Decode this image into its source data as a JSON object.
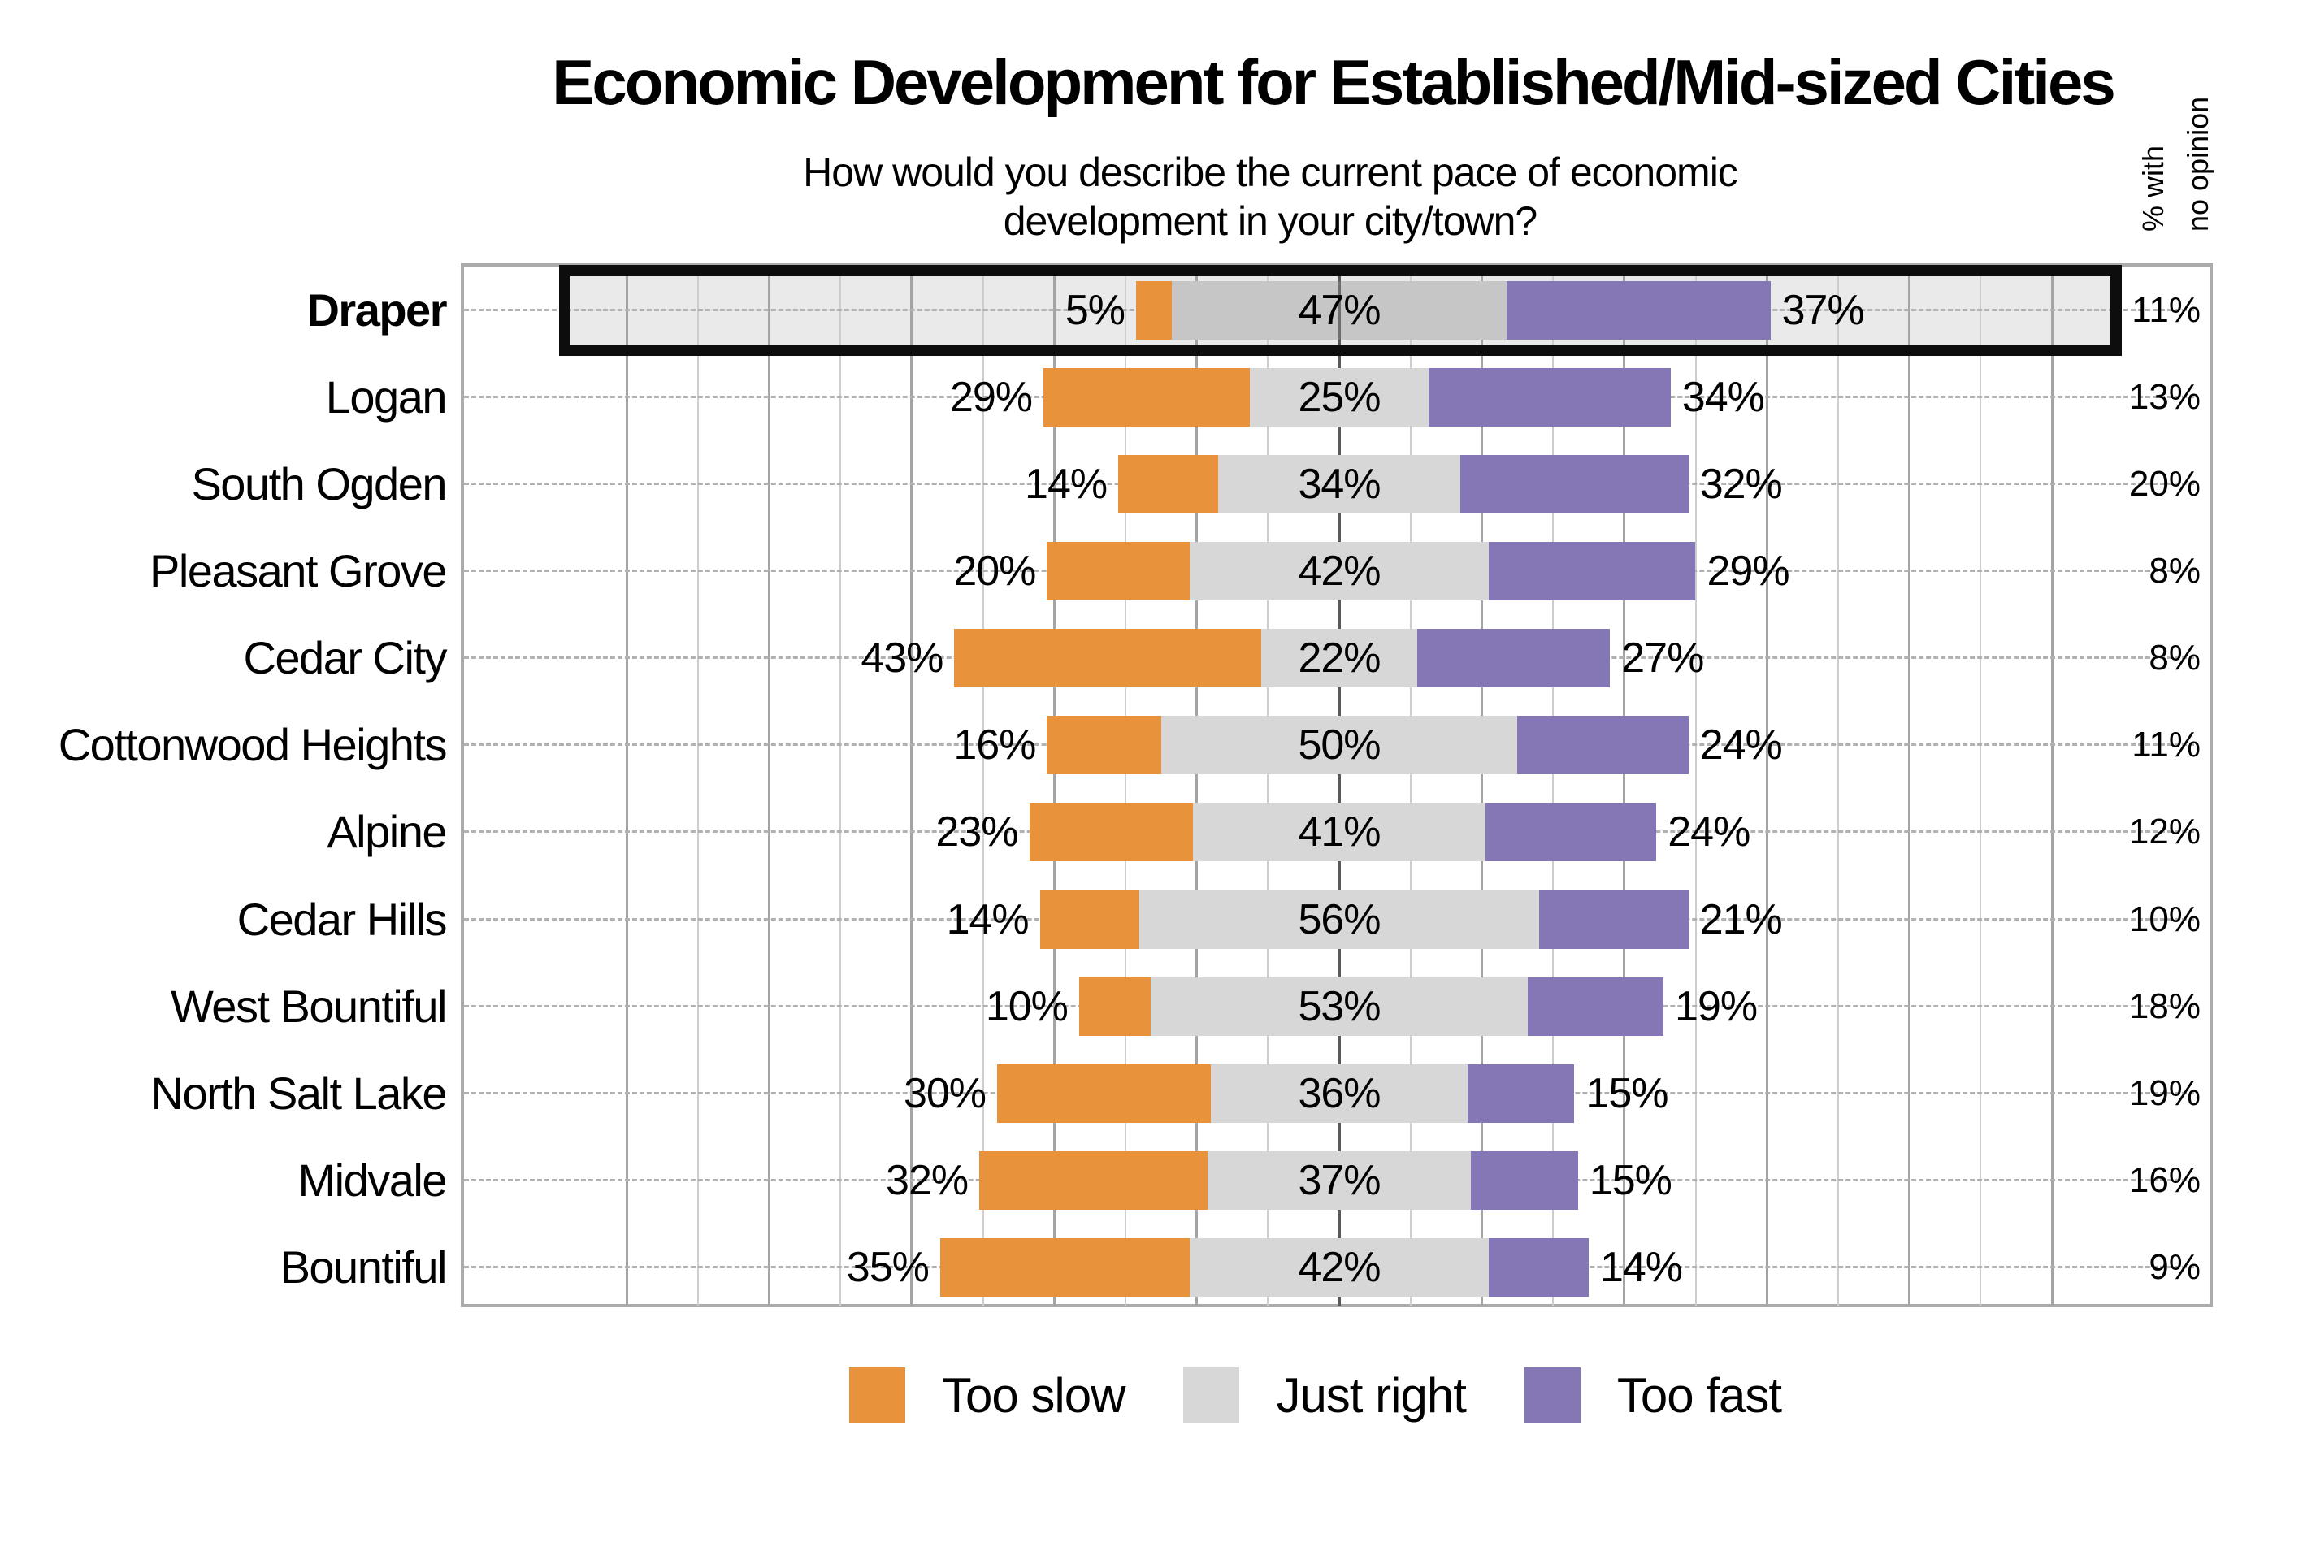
{
  "title": "Economic Development for Established/Mid-sized Cities",
  "subtitle_line1": "How would you describe the current pace of economic",
  "subtitle_line2": "development in your city/town?",
  "right_axis_label_line1": "% with",
  "right_axis_label_line2": "no opinion",
  "legend": [
    {
      "label": "Too slow",
      "color": "#E8923C"
    },
    {
      "label": "Just right",
      "color": "#D7D7D7"
    },
    {
      "label": "Too fast",
      "color": "#8577B5"
    }
  ],
  "colors": {
    "too_slow": "#E8923C",
    "just_right": "#D7D7D7",
    "too_fast": "#8577B5",
    "highlight_fill": "#EAEAEA",
    "highlight_just_right": "#C6C6C6",
    "highlight_border": "#0D0D0D",
    "frame_border": "#ABABAB",
    "grid_minor": "#CDCDCD",
    "grid_major": "#A4A4A4",
    "grid_center": "#5A5A5A",
    "row_guide": "#B1B1B1",
    "text": "#000000"
  },
  "chart_data": {
    "type": "bar",
    "orientation": "horizontal-diverging-stacked",
    "title": "Economic Development for Established/Mid-sized Cities",
    "subtitle": "How would you describe the current pace of economic development in your city/town?",
    "categories": [
      "Draper",
      "Logan",
      "South Ogden",
      "Pleasant Grove",
      "Cedar City",
      "Cottonwood Heights",
      "Alpine",
      "Cedar Hills",
      "West Bountiful",
      "North Salt Lake",
      "Midvale",
      "Bountiful"
    ],
    "series": [
      {
        "name": "Too slow",
        "values": [
          5,
          29,
          14,
          20,
          43,
          16,
          23,
          14,
          10,
          30,
          32,
          35
        ]
      },
      {
        "name": "Just right",
        "values": [
          47,
          25,
          34,
          42,
          22,
          50,
          41,
          56,
          53,
          36,
          37,
          42
        ]
      },
      {
        "name": "Too fast",
        "values": [
          37,
          34,
          32,
          29,
          27,
          24,
          24,
          21,
          19,
          15,
          15,
          14
        ]
      }
    ],
    "no_opinion_column": {
      "header": "% with no opinion",
      "values": [
        11,
        13,
        20,
        8,
        8,
        11,
        12,
        10,
        18,
        19,
        16,
        9
      ]
    },
    "highlighted_category": "Draper",
    "value_suffix": "%",
    "axis": {
      "center_pct": 0,
      "minor_step_pct": 10,
      "major_step_pct": 20,
      "gridline_extent_pct": 100,
      "neutral_series": "Just right",
      "neutral_alignment": "centered-on-zero"
    },
    "legend_position": "bottom",
    "grid": true
  }
}
